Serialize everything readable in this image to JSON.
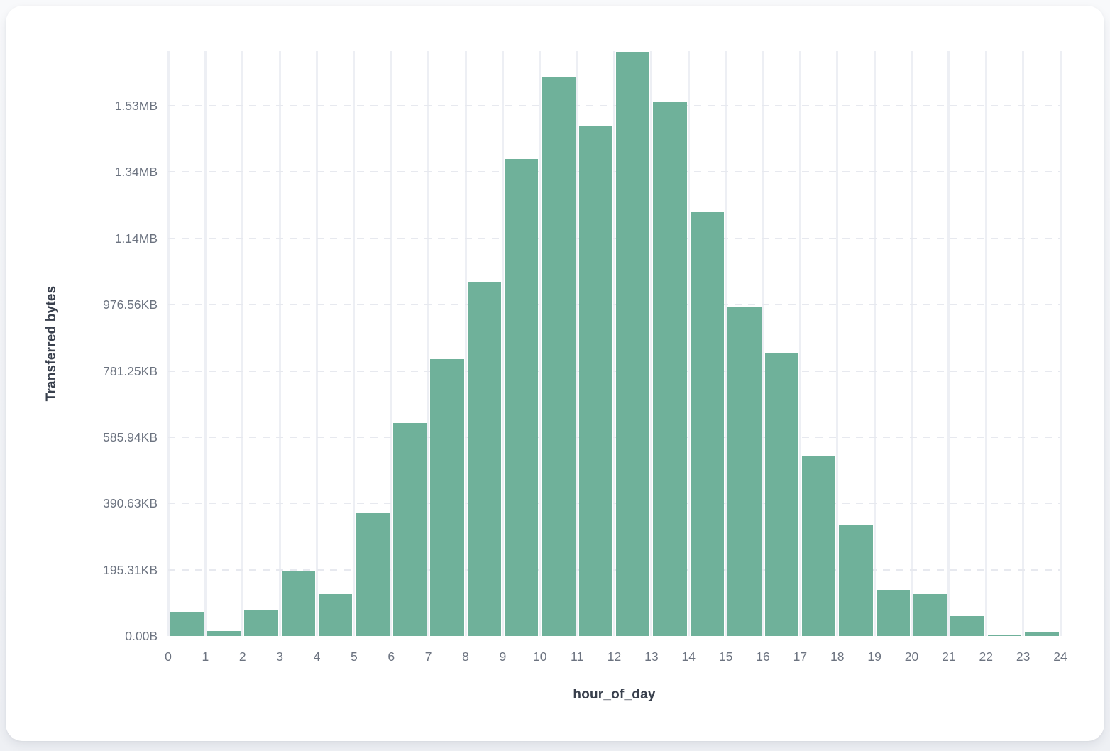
{
  "chart_data": {
    "type": "bar",
    "title": "",
    "xlabel": "hour_of_day",
    "ylabel": "Transferred bytes",
    "categories": [
      0,
      1,
      2,
      3,
      4,
      5,
      6,
      7,
      8,
      9,
      10,
      11,
      12,
      13,
      14,
      15,
      16,
      17,
      18,
      19,
      20,
      21,
      22,
      23
    ],
    "values": [
      72700,
      15000,
      76900,
      196600,
      126000,
      369700,
      642000,
      835500,
      1068400,
      1440200,
      1688000,
      1540600,
      1762800,
      1611100,
      1277800,
      993600,
      854700,
      544900,
      335500,
      138900,
      126000,
      59800,
      4300,
      12800
    ],
    "values_unit": "bytes",
    "x_ticks": [
      "0",
      "1",
      "2",
      "3",
      "4",
      "5",
      "6",
      "7",
      "8",
      "9",
      "10",
      "11",
      "12",
      "13",
      "14",
      "15",
      "16",
      "17",
      "18",
      "19",
      "20",
      "21",
      "22",
      "23",
      "24"
    ],
    "y_ticks": [
      {
        "label": "0.00B",
        "bytes": 0
      },
      {
        "label": "195.31KB",
        "bytes": 200000
      },
      {
        "label": "390.63KB",
        "bytes": 400000
      },
      {
        "label": "585.94KB",
        "bytes": 600000
      },
      {
        "label": "781.25KB",
        "bytes": 800000
      },
      {
        "label": "976.56KB",
        "bytes": 1000000
      },
      {
        "label": "1.14MB",
        "bytes": 1200000
      },
      {
        "label": "1.34MB",
        "bytes": 1400000
      },
      {
        "label": "1.53MB",
        "bytes": 1600000
      }
    ],
    "ylim": [
      0,
      1765000
    ],
    "bar_color": "#6FB19A",
    "grid": "on",
    "legend": "none"
  }
}
